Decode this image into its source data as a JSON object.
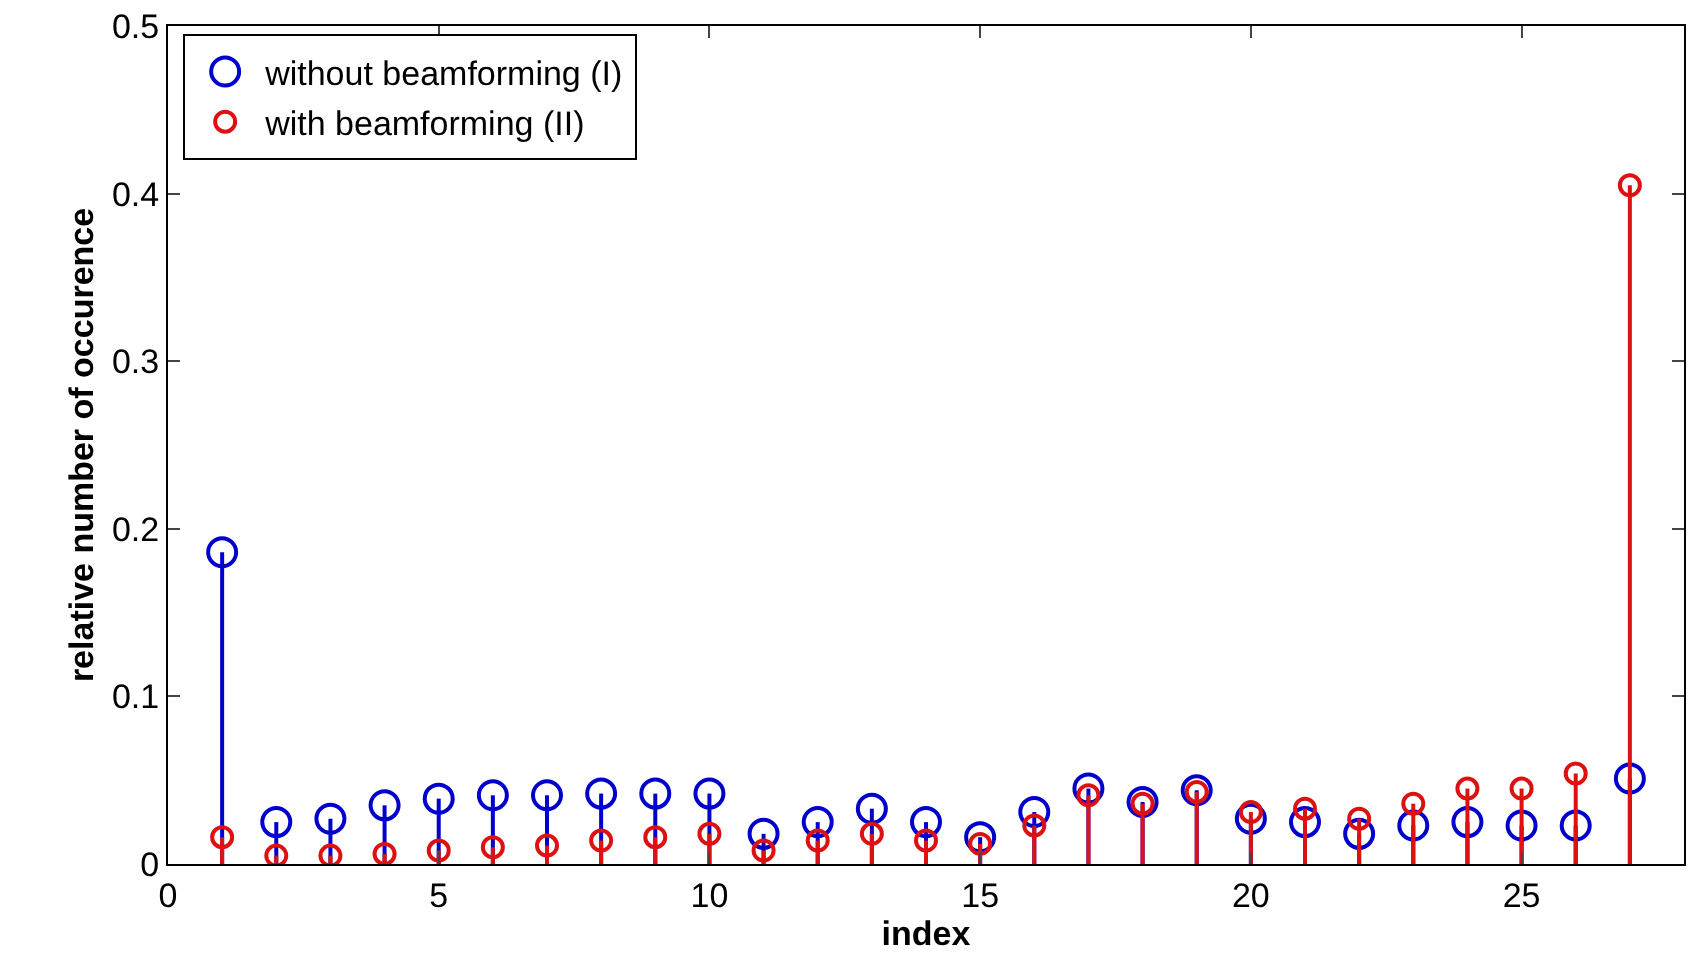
{
  "chart_data": {
    "type": "lollipop",
    "xlabel": "index",
    "ylabel": "relative number of occurence",
    "x": [
      1,
      2,
      3,
      4,
      5,
      6,
      7,
      8,
      9,
      10,
      11,
      12,
      13,
      14,
      15,
      16,
      17,
      18,
      19,
      20,
      21,
      22,
      23,
      24,
      25,
      26,
      27
    ],
    "series": [
      {
        "name": "without beamforming (I)",
        "color": "#0000cc",
        "values": [
          0.186,
          0.025,
          0.027,
          0.035,
          0.039,
          0.041,
          0.041,
          0.042,
          0.042,
          0.042,
          0.018,
          0.025,
          0.033,
          0.025,
          0.016,
          0.031,
          0.045,
          0.037,
          0.044,
          0.027,
          0.025,
          0.018,
          0.023,
          0.025,
          0.023,
          0.023,
          0.051
        ]
      },
      {
        "name": "with beamforming (II)",
        "color": "#dd1111",
        "values": [
          0.016,
          0.005,
          0.005,
          0.006,
          0.008,
          0.01,
          0.011,
          0.014,
          0.016,
          0.018,
          0.008,
          0.014,
          0.018,
          0.014,
          0.012,
          0.023,
          0.041,
          0.036,
          0.043,
          0.031,
          0.033,
          0.027,
          0.036,
          0.045,
          0.045,
          0.054,
          0.405
        ]
      }
    ],
    "xlim": [
      0,
      28
    ],
    "xticks": [
      0,
      5,
      10,
      15,
      20,
      25
    ],
    "ylim": [
      0,
      0.5
    ],
    "yticks": [
      0,
      0.1,
      0.2,
      0.3,
      0.4,
      0.5
    ],
    "legend": "top left",
    "marker": "circle"
  }
}
